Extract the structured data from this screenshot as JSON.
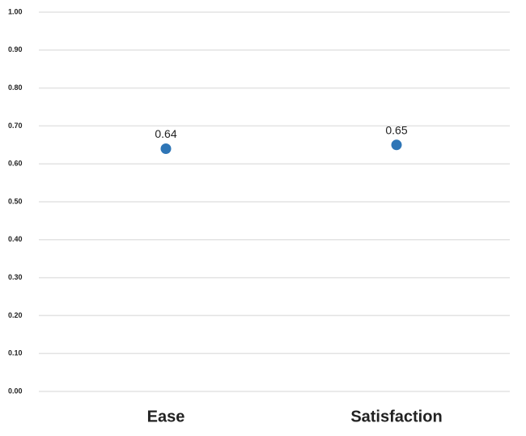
{
  "chart_data": {
    "type": "dot",
    "categories": [
      "Ease",
      "Satisfaction"
    ],
    "values": [
      0.64,
      0.65
    ],
    "color": "#2e75b6",
    "ylim": [
      0,
      1
    ],
    "yticks": [
      {
        "value": 0,
        "label": "0.00"
      },
      {
        "value": 0.1,
        "label": "0.10"
      },
      {
        "value": 0.2,
        "label": "0.20"
      },
      {
        "value": 0.3,
        "label": "0.30"
      },
      {
        "value": 0.4,
        "label": "0.40"
      },
      {
        "value": 0.5,
        "label": "0.50"
      },
      {
        "value": 0.6,
        "label": "0.60"
      },
      {
        "value": 0.7,
        "label": "0.70"
      },
      {
        "value": 0.8,
        "label": "0.80"
      },
      {
        "value": 0.9,
        "label": "0.90"
      },
      {
        "value": 1,
        "label": "1.00"
      }
    ],
    "grid": true
  }
}
